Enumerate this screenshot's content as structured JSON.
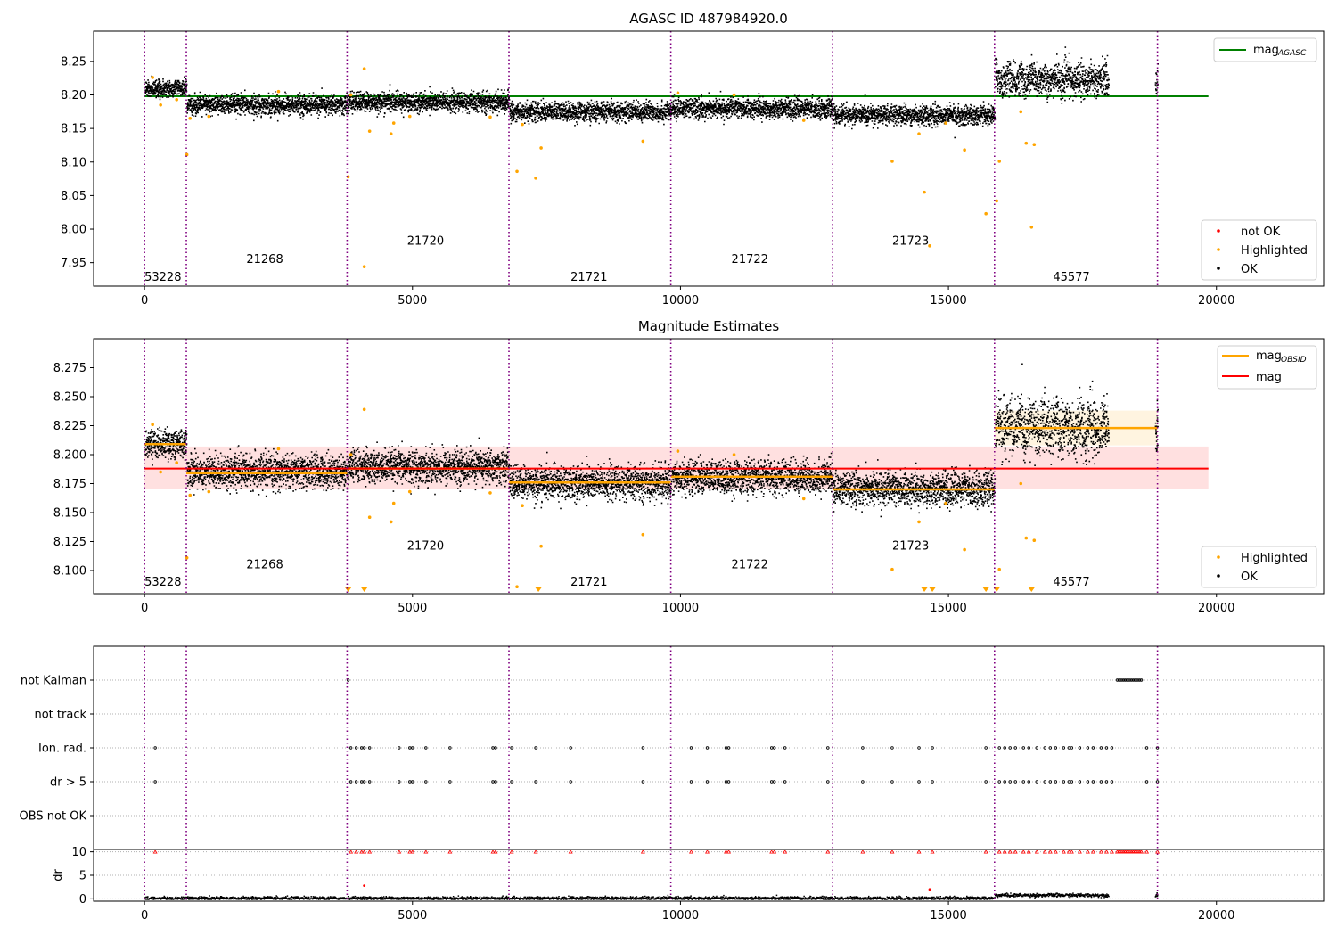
{
  "chart_data": [
    {
      "type": "scatter",
      "title": "AGASC ID 487984920.0",
      "xlim": [
        -950,
        22000
      ],
      "ylim": [
        7.915,
        8.295
      ],
      "x_ticks": [
        0,
        5000,
        10000,
        15000,
        20000
      ],
      "y_ticks": [
        7.95,
        8.0,
        8.05,
        8.1,
        8.15,
        8.2,
        8.25
      ],
      "y_tick_labels": [
        "7.95",
        "8.00",
        "8.05",
        "8.10",
        "8.15",
        "8.20",
        "8.25"
      ],
      "reference_line": {
        "name": "mag_AGASC",
        "value": 8.198,
        "x_range": [
          0,
          19850
        ],
        "color": "#008000"
      },
      "legend_top": {
        "label": "mag",
        "subscript": "AGASC",
        "placement": "upper right"
      },
      "legend_bottom": {
        "placement": "lower right",
        "entries": [
          {
            "label": "not OK",
            "color": "#ff0000"
          },
          {
            "label": "Highlighted",
            "color": "#ffa500"
          },
          {
            "label": "OK",
            "color": "#000000"
          }
        ]
      },
      "obsid_boundaries": [
        0,
        780,
        3780,
        6800,
        9820,
        12840,
        15860,
        18900
      ],
      "obsids": [
        {
          "label": "53228",
          "x_start": 0,
          "x_end": 780,
          "mean": 8.21,
          "sd": 0.006,
          "label_x": 0,
          "label_y": 7.928
        },
        {
          "label": "21268",
          "x_start": 780,
          "x_end": 3780,
          "mean": 8.186,
          "sd": 0.007,
          "label_x": 1900,
          "label_y": 7.955
        },
        {
          "label": "21720",
          "x_start": 3780,
          "x_end": 6800,
          "mean": 8.19,
          "sd": 0.007,
          "label_x": 4900,
          "label_y": 7.982
        },
        {
          "label": "21721",
          "x_start": 6800,
          "x_end": 9820,
          "mean": 8.176,
          "sd": 0.007,
          "label_x": 7950,
          "label_y": 7.928
        },
        {
          "label": "21722",
          "x_start": 9820,
          "x_end": 12840,
          "mean": 8.181,
          "sd": 0.007,
          "label_x": 10950,
          "label_y": 7.955
        },
        {
          "label": "21723",
          "x_start": 12840,
          "x_end": 15860,
          "mean": 8.171,
          "sd": 0.007,
          "label_x": 13950,
          "label_y": 7.982
        },
        {
          "label": "45577",
          "x_start": 15860,
          "x_end": 18900,
          "mean": 8.224,
          "sd": 0.012,
          "label_x": 16950,
          "label_y": 7.928
        }
      ],
      "ok_data_gap": [
        17980,
        18850
      ],
      "highlighted_points": [
        {
          "x": 150,
          "y": 8.226
        },
        {
          "x": 300,
          "y": 8.185
        },
        {
          "x": 600,
          "y": 8.193
        },
        {
          "x": 790,
          "y": 8.111
        },
        {
          "x": 850,
          "y": 8.165
        },
        {
          "x": 1200,
          "y": 8.168
        },
        {
          "x": 2500,
          "y": 8.205
        },
        {
          "x": 3800,
          "y": 8.078
        },
        {
          "x": 3850,
          "y": 8.2
        },
        {
          "x": 4100,
          "y": 8.239
        },
        {
          "x": 4100,
          "y": 7.944
        },
        {
          "x": 4200,
          "y": 8.146
        },
        {
          "x": 4600,
          "y": 8.142
        },
        {
          "x": 4650,
          "y": 8.158
        },
        {
          "x": 4950,
          "y": 8.168
        },
        {
          "x": 6450,
          "y": 8.167
        },
        {
          "x": 6950,
          "y": 8.086
        },
        {
          "x": 7050,
          "y": 8.156
        },
        {
          "x": 7300,
          "y": 8.076
        },
        {
          "x": 7400,
          "y": 8.121
        },
        {
          "x": 9300,
          "y": 8.131
        },
        {
          "x": 9950,
          "y": 8.203
        },
        {
          "x": 11000,
          "y": 8.2
        },
        {
          "x": 12300,
          "y": 8.162
        },
        {
          "x": 13950,
          "y": 8.101
        },
        {
          "x": 14450,
          "y": 8.142
        },
        {
          "x": 14550,
          "y": 8.055
        },
        {
          "x": 14650,
          "y": 7.975
        },
        {
          "x": 14950,
          "y": 8.158
        },
        {
          "x": 15300,
          "y": 8.118
        },
        {
          "x": 15700,
          "y": 8.023
        },
        {
          "x": 15900,
          "y": 8.042
        },
        {
          "x": 15950,
          "y": 8.101
        },
        {
          "x": 16350,
          "y": 8.175
        },
        {
          "x": 16450,
          "y": 8.128
        },
        {
          "x": 16550,
          "y": 8.003
        },
        {
          "x": 16600,
          "y": 8.126
        }
      ]
    },
    {
      "type": "scatter",
      "title": "Magnitude Estimates",
      "xlim": [
        -950,
        22000
      ],
      "ylim": [
        8.08,
        8.3
      ],
      "x_ticks": [
        0,
        5000,
        10000,
        15000,
        20000
      ],
      "y_ticks": [
        8.1,
        8.125,
        8.15,
        8.175,
        8.2,
        8.225,
        8.25,
        8.275
      ],
      "y_tick_labels": [
        "8.100",
        "8.125",
        "8.150",
        "8.175",
        "8.200",
        "8.225",
        "8.250",
        "8.275"
      ],
      "mag_line": {
        "name": "mag",
        "value": 8.188,
        "band": [
          8.17,
          8.207
        ],
        "x_range": [
          0,
          19850
        ],
        "color": "#ff0000"
      },
      "obsid_levels": [
        {
          "x_start": 0,
          "x_end": 780,
          "value": 8.209
        },
        {
          "x_start": 780,
          "x_end": 3780,
          "value": 8.184
        },
        {
          "x_start": 3780,
          "x_end": 6800,
          "value": 8.188
        },
        {
          "x_start": 6800,
          "x_end": 9820,
          "value": 8.176
        },
        {
          "x_start": 9820,
          "x_end": 12840,
          "value": 8.181
        },
        {
          "x_start": 12840,
          "x_end": 15860,
          "value": 8.17
        },
        {
          "x_start": 15860,
          "x_end": 18900,
          "value": 8.223
        }
      ],
      "obsid_level_band_last": [
        8.208,
        8.238
      ],
      "legend_top": {
        "placement": "upper right",
        "entries": [
          {
            "label": "mag",
            "subscript": "OBSID",
            "color": "#ffa500"
          },
          {
            "label": "mag",
            "subscript": "",
            "color": "#ff0000"
          }
        ]
      },
      "legend_bottom": {
        "placement": "lower right",
        "entries": [
          {
            "label": "Highlighted",
            "color": "#ffa500"
          },
          {
            "label": "OK",
            "color": "#000000"
          }
        ]
      },
      "obsid_label_y": {
        "53228": 8.09,
        "21268": 8.105,
        "21720": 8.121,
        "21721": 8.09,
        "21722": 8.105,
        "21723": 8.121,
        "45577": 8.09
      },
      "below_range_markers_x": [
        3800,
        4100,
        7350,
        14550,
        14700,
        15700,
        15900,
        16550
      ]
    },
    {
      "type": "scatter",
      "title": "",
      "xlim": [
        -950,
        22000
      ],
      "x_ticks": [
        0,
        5000,
        10000,
        15000,
        20000
      ],
      "flag_rows": [
        "not Kalman",
        "not track",
        "Ion. rad.",
        "dr > 5",
        "OBS not OK"
      ],
      "flag_points": {
        "not Kalman": {
          "x": [
            3800
          ],
          "x_dense": [
            18150,
            18600
          ]
        },
        "not track": {
          "x": []
        },
        "Ion. rad.": {
          "x": [
            200,
            3850,
            3950,
            4050,
            4100,
            4200,
            4750,
            4950,
            5000,
            5250,
            5700,
            6500,
            6550,
            6850,
            7300,
            7950,
            9300,
            10200,
            10500,
            10850,
            10900,
            11700,
            11750,
            11950,
            12750,
            13400,
            13950,
            14450,
            14700,
            15700,
            15950,
            16050,
            16150,
            16250,
            16400,
            16500,
            16650,
            16800,
            16900,
            17000,
            17150,
            17250,
            17300,
            17450,
            17600,
            17700,
            17850,
            17950,
            18050,
            18700,
            18900
          ]
        },
        "dr > 5": {
          "x": [
            200,
            3850,
            3950,
            4050,
            4100,
            4200,
            4750,
            4950,
            5000,
            5250,
            5700,
            6500,
            6550,
            6850,
            7300,
            7950,
            9300,
            10200,
            10500,
            10850,
            10900,
            11700,
            11750,
            11950,
            12750,
            13400,
            13950,
            14450,
            14700,
            15700,
            15950,
            16050,
            16150,
            16250,
            16400,
            16500,
            16650,
            16800,
            16900,
            17000,
            17150,
            17250,
            17300,
            17450,
            17600,
            17700,
            17850,
            17950,
            18050,
            18700,
            18900
          ]
        },
        "OBS not OK": {
          "x": []
        }
      }
    },
    {
      "type": "scatter",
      "title": "",
      "ylabel": "dr",
      "xlim": [
        -950,
        22000
      ],
      "ylim": [
        -0.5,
        10.5
      ],
      "x_ticks": [
        0,
        5000,
        10000,
        15000,
        20000
      ],
      "y_ticks": [
        0,
        5,
        10
      ],
      "y_tick_labels": [
        "0",
        "5",
        "10"
      ],
      "clipped_markers_at": 10,
      "outlier_points": [
        {
          "x": 4100,
          "y": 2.8
        },
        {
          "x": 14650,
          "y": 2.0
        }
      ]
    }
  ]
}
